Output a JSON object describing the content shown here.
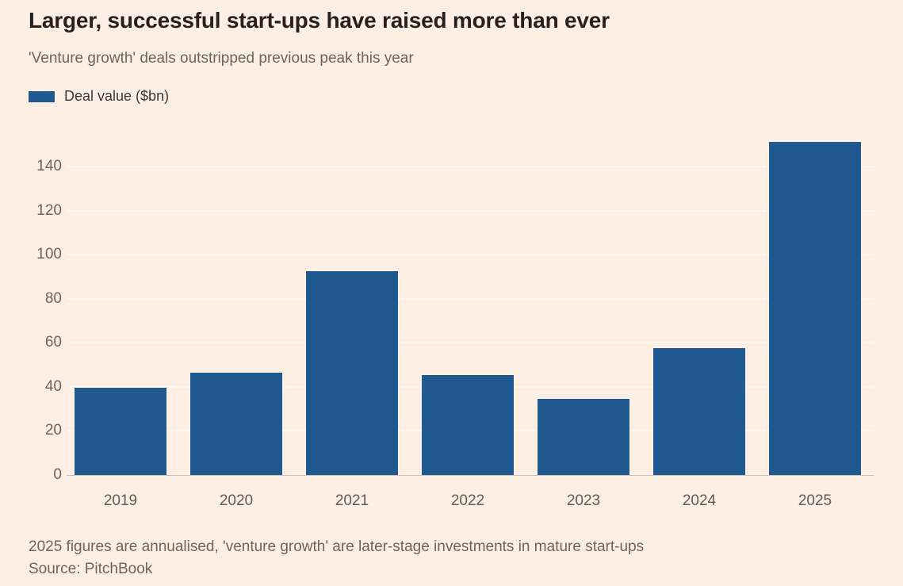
{
  "header": {
    "title": "Larger, successful start-ups have raised more than ever",
    "subtitle": "'Venture growth' deals outstripped previous peak this year"
  },
  "legend": {
    "label": "Deal value ($bn)"
  },
  "footer": {
    "note": "2025 figures are annualised, 'venture growth' are later-stage investments in mature start-ups",
    "source": "Source: PitchBook"
  },
  "colors": {
    "background": "#fdefe3",
    "bar": "#20598f",
    "grid": "#fff7ed",
    "baseline": "rgba(80,68,56,0.28)",
    "title_text": "#26211c",
    "muted_text": "#6e645c",
    "legend_text": "#3d3833"
  },
  "chart_data": {
    "type": "bar",
    "title": "Larger, successful start-ups have raised more than ever",
    "subtitle": "'Venture growth' deals outstripped previous peak this year",
    "series_name": "Deal value ($bn)",
    "categories": [
      "2019",
      "2020",
      "2021",
      "2022",
      "2023",
      "2024",
      "2025"
    ],
    "values": [
      39.5,
      46.5,
      92.5,
      45.5,
      34.5,
      57.5,
      151
    ],
    "xlabel": "",
    "ylabel": "Deal value ($bn)",
    "ylim": [
      0,
      158
    ],
    "yticks": [
      0,
      20,
      40,
      60,
      80,
      100,
      120,
      140
    ],
    "grid": "horizontal",
    "legend_position": "top-left",
    "note": "2025 figures are annualised, 'venture growth' are later-stage investments in mature start-ups",
    "source": "Source: PitchBook"
  }
}
